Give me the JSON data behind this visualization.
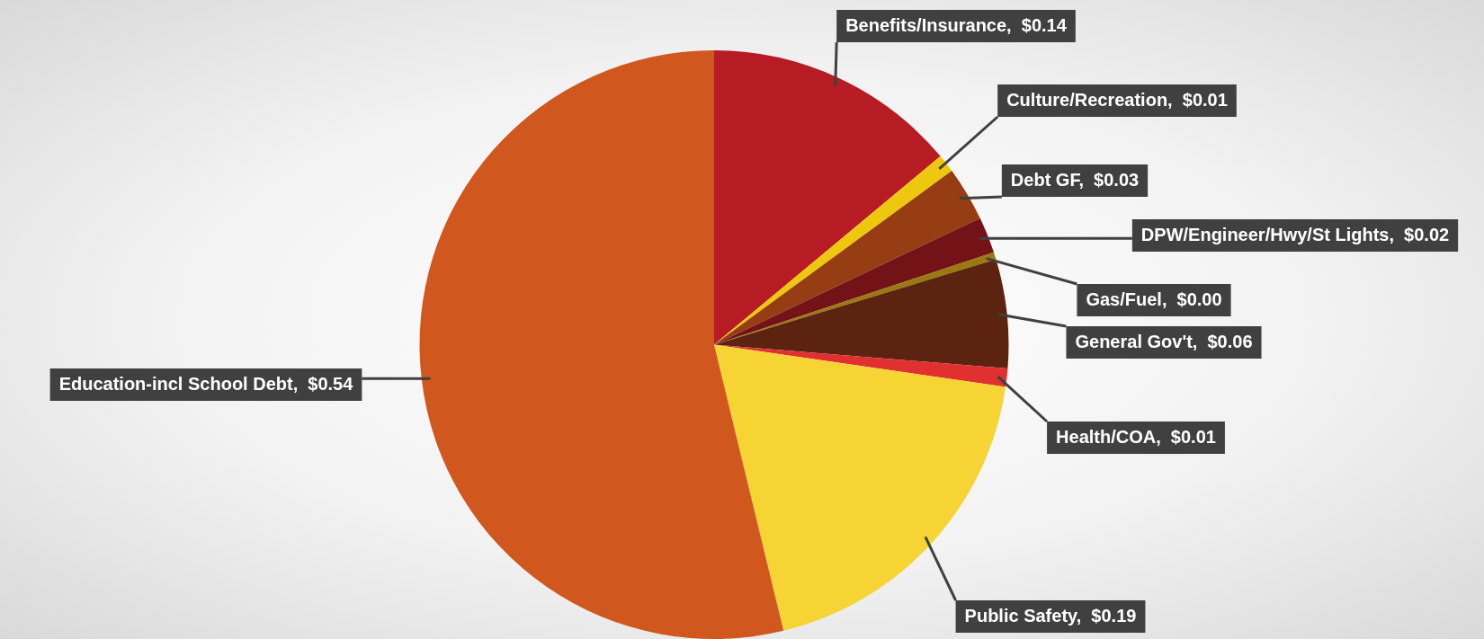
{
  "chart_data": {
    "type": "pie",
    "categories": [
      "Benefits/Insurance",
      "Culture/Recreation",
      "Debt GF",
      "DPW/Engineer/Hwy/St Lights",
      "Gas/Fuel",
      "General Gov't",
      "Health/COA",
      "Public Safety",
      "Education-incl School Debt"
    ],
    "values": [
      0.14,
      0.01,
      0.03,
      0.02,
      0.004,
      0.06,
      0.01,
      0.19,
      0.54
    ],
    "value_labels": [
      "$0.14",
      "$0.01",
      "$0.03",
      "$0.02",
      "$0.00",
      "$0.06",
      "$0.01",
      "$0.19",
      "$0.54"
    ],
    "colors": [
      "#b71c24",
      "#eec80f",
      "#963d13",
      "#731217",
      "#9a7a10",
      "#5c2410",
      "#e03030",
      "#f5d434",
      "#d0581e"
    ],
    "legend": false
  }
}
